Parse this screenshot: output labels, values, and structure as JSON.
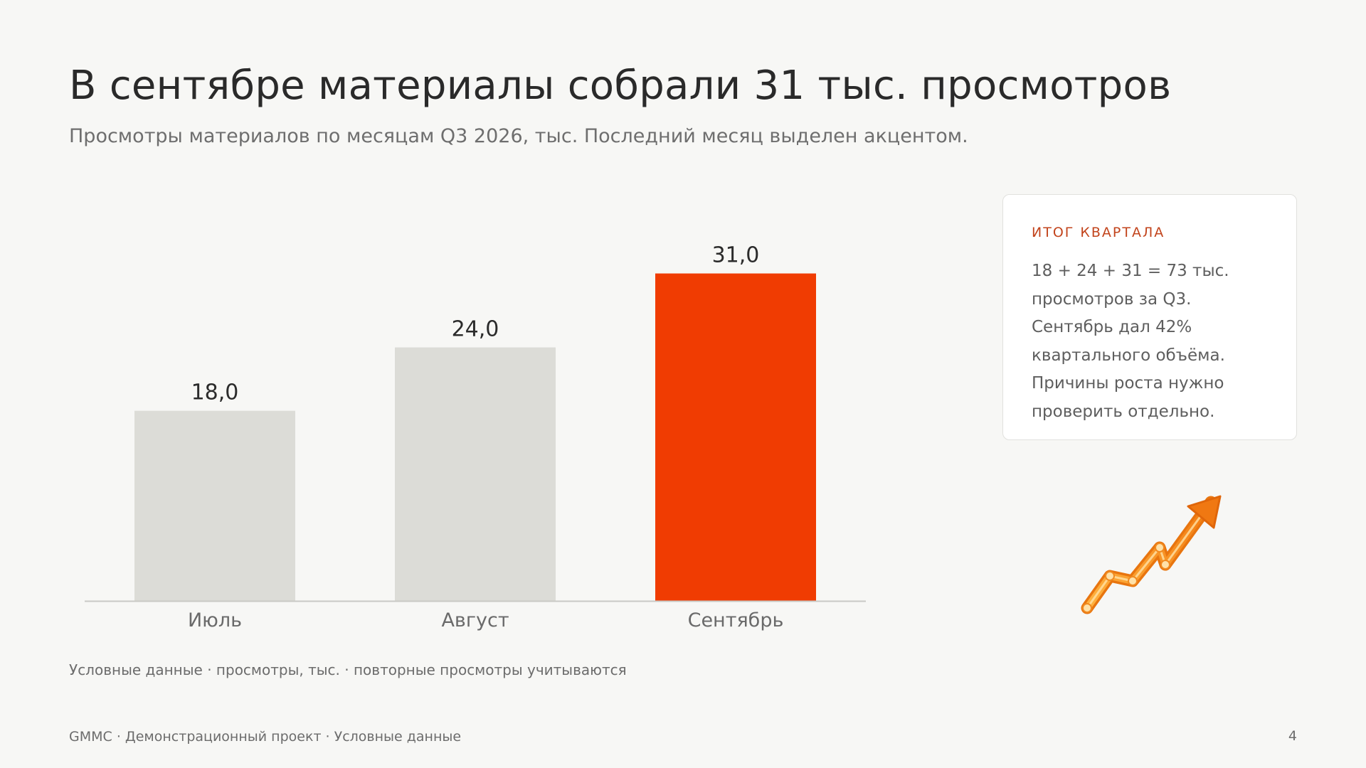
{
  "slide": {
    "title": "В сентябре материалы собрали 31 тыс. просмотров",
    "subtitle": "Просмотры материалов по месяцам Q3 2026, тыс. Последний месяц выделен акцентом.",
    "note": "Условные данные · просмотры, тыс. · повторные просмотры учитываются",
    "footer": "GMMC · Демонстрационный проект · Условные данные",
    "page_number": "4"
  },
  "summary_card": {
    "title": "ИТОГ КВАРТАЛА",
    "lines": [
      "18 + 24 + 31 = 73 тыс.",
      "просмотров за Q3.",
      "Сентябрь дал 42%",
      "квартального объёма.",
      "Причины роста нужно",
      "проверить отдельно."
    ]
  },
  "decor": {
    "icon": "trend-up-arrow-icon"
  },
  "colors": {
    "bar_default": "#dcdcd7",
    "bar_accent": "#f03c02",
    "card_title": "#c2441c",
    "arrow": "#f58c16"
  },
  "chart_data": {
    "type": "bar",
    "categories": [
      "Июль",
      "Август",
      "Сентябрь"
    ],
    "values": [
      18,
      24,
      31
    ],
    "value_labels": [
      "18,0",
      "24,0",
      "31,0"
    ],
    "highlight_index": 2,
    "ylim": [
      0,
      34
    ],
    "grid": false
  }
}
